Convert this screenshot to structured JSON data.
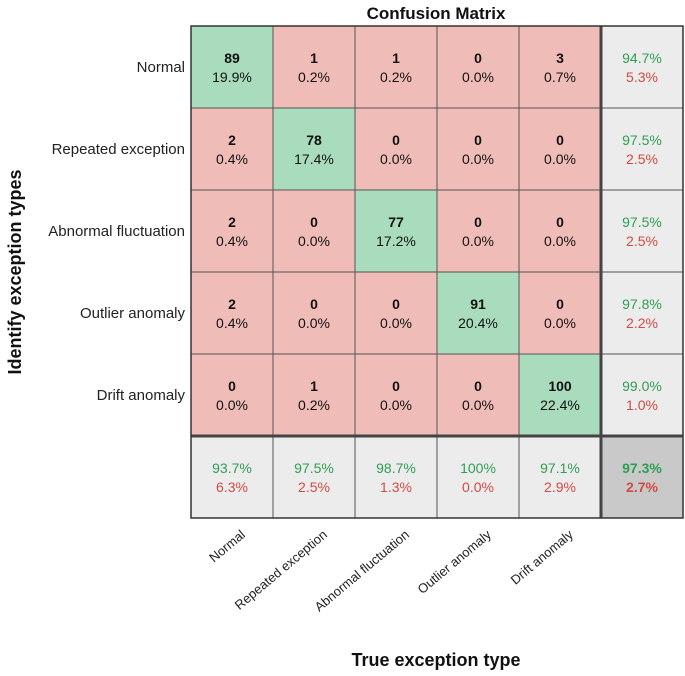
{
  "chart_data": {
    "type": "heatmap",
    "title": "Confusion Matrix",
    "xlabel": "True exception type",
    "ylabel": "Identify exception types",
    "row_labels": [
      "Normal",
      "Repeated exception",
      "Abnormal fluctuation",
      "Outlier anomaly",
      "Drift anomaly"
    ],
    "col_labels": [
      "Normal",
      "Repeated exception",
      "Abnormal fluctuation",
      "Outlier anomaly",
      "Drift anomaly"
    ],
    "counts": [
      [
        89,
        1,
        1,
        0,
        3
      ],
      [
        2,
        78,
        0,
        0,
        0
      ],
      [
        2,
        0,
        77,
        0,
        0
      ],
      [
        2,
        0,
        0,
        91,
        0
      ],
      [
        0,
        1,
        0,
        0,
        100
      ]
    ],
    "percents": [
      [
        "19.9%",
        "0.2%",
        "0.2%",
        "0.0%",
        "0.7%"
      ],
      [
        "0.4%",
        "17.4%",
        "0.0%",
        "0.0%",
        "0.0%"
      ],
      [
        "0.4%",
        "0.0%",
        "17.2%",
        "0.0%",
        "0.0%"
      ],
      [
        "0.4%",
        "0.0%",
        "0.0%",
        "20.4%",
        "0.0%"
      ],
      [
        "0.0%",
        "0.2%",
        "0.0%",
        "0.0%",
        "22.4%"
      ]
    ],
    "row_summary": [
      {
        "correct": "94.7%",
        "error": "5.3%"
      },
      {
        "correct": "97.5%",
        "error": "2.5%"
      },
      {
        "correct": "97.5%",
        "error": "2.5%"
      },
      {
        "correct": "97.8%",
        "error": "2.2%"
      },
      {
        "correct": "99.0%",
        "error": "1.0%"
      }
    ],
    "col_summary": [
      {
        "correct": "93.7%",
        "error": "6.3%"
      },
      {
        "correct": "97.5%",
        "error": "2.5%"
      },
      {
        "correct": "98.7%",
        "error": "1.3%"
      },
      {
        "correct": "100%",
        "error": "0.0%"
      },
      {
        "correct": "97.1%",
        "error": "2.9%"
      }
    ],
    "overall": {
      "correct": "97.3%",
      "error": "2.7%"
    },
    "colors": {
      "diagonal": "#a9dcbc",
      "off_diagonal": "#efbcb8",
      "summary": "#ececec",
      "overall": "#c9c9c9",
      "good_text": "#2f9e55",
      "bad_text": "#d24a43"
    }
  }
}
